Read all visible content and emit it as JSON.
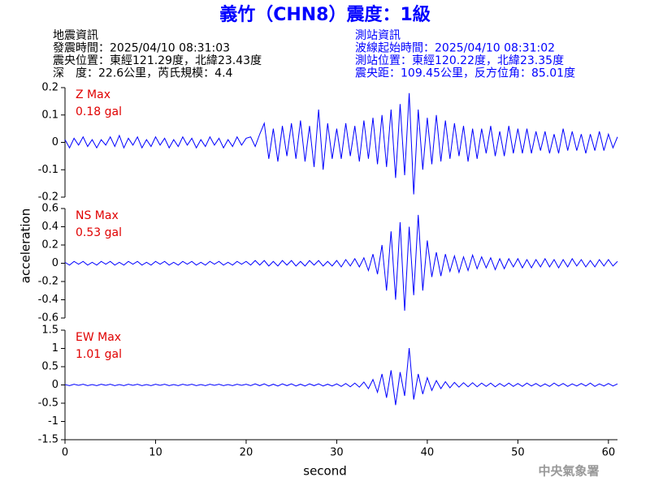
{
  "header": {
    "title": "義竹（CHN8）震度：1級",
    "left": [
      "地震資訊",
      "發震時間：2025/04/10 08:31:03",
      "震央位置：東經121.29度，北緯23.43度",
      "深　度：22.6公里，芮氏規模：4.4"
    ],
    "right": [
      "測站資訊",
      "波線起始時間：2025/04/10 08:31:02",
      "測站位置：東經120.22度，北緯23.35度",
      "震央距：109.45公里，反方位角：85.01度"
    ]
  },
  "ylabel": "acceleration",
  "footer": "中央氣象署",
  "chart_data": [
    {
      "type": "line",
      "title": "Z Max",
      "subtitle": "0.18 gal",
      "color": "#0000ff",
      "xlim": [
        0,
        61
      ],
      "ylim": [
        -0.2,
        0.2
      ],
      "yticks": [
        0.2,
        0.1,
        0,
        -0.1,
        -0.2
      ],
      "x": [
        0,
        0.5,
        1,
        1.5,
        2,
        2.5,
        3,
        3.5,
        4,
        4.5,
        5,
        5.5,
        6,
        6.5,
        7,
        7.5,
        8,
        8.5,
        9,
        9.5,
        10,
        10.5,
        11,
        11.5,
        12,
        12.5,
        13,
        13.5,
        14,
        14.5,
        15,
        15.5,
        16,
        16.5,
        17,
        17.5,
        18,
        18.5,
        19,
        19.5,
        20,
        20.5,
        21,
        21.5,
        22,
        22.5,
        23,
        23.5,
        24,
        24.5,
        25,
        25.5,
        26,
        26.5,
        27,
        27.5,
        28,
        28.5,
        29,
        29.5,
        30,
        30.5,
        31,
        31.5,
        32,
        32.5,
        33,
        33.5,
        34,
        34.5,
        35,
        35.5,
        36,
        36.5,
        37,
        37.5,
        38,
        38.5,
        39,
        39.5,
        40,
        40.5,
        41,
        41.5,
        42,
        42.5,
        43,
        43.5,
        44,
        44.5,
        45,
        45.5,
        46,
        46.5,
        47,
        47.5,
        48,
        48.5,
        49,
        49.5,
        50,
        50.5,
        51,
        51.5,
        52,
        52.5,
        53,
        53.5,
        54,
        54.5,
        55,
        55.5,
        56,
        56.5,
        57,
        57.5,
        58,
        58.5,
        59,
        59.5,
        60,
        60.5,
        61
      ],
      "values": [
        0.01,
        -0.02,
        0.015,
        -0.01,
        0.02,
        -0.015,
        0.01,
        -0.02,
        0.01,
        -0.01,
        0.02,
        -0.015,
        0.025,
        -0.02,
        0.015,
        -0.01,
        0.02,
        -0.02,
        0.01,
        -0.015,
        0.02,
        -0.01,
        0.015,
        -0.02,
        0.01,
        -0.015,
        0.02,
        -0.01,
        0.015,
        -0.02,
        0.01,
        -0.015,
        0.02,
        -0.01,
        0.015,
        -0.02,
        0.01,
        -0.015,
        0.02,
        -0.01,
        0.015,
        0.02,
        -0.015,
        0.03,
        0.07,
        -0.06,
        0.05,
        -0.07,
        0.06,
        -0.05,
        0.07,
        -0.06,
        0.08,
        -0.07,
        0.06,
        -0.09,
        0.12,
        -0.1,
        0.07,
        -0.06,
        0.05,
        -0.06,
        0.07,
        -0.05,
        0.06,
        -0.07,
        0.08,
        -0.06,
        0.09,
        -0.08,
        0.1,
        -0.09,
        0.12,
        -0.13,
        0.14,
        -0.12,
        0.18,
        -0.19,
        0.12,
        -0.1,
        0.09,
        -0.08,
        0.1,
        -0.07,
        0.08,
        -0.06,
        0.07,
        -0.05,
        0.06,
        -0.07,
        0.05,
        -0.06,
        0.05,
        -0.04,
        0.06,
        -0.05,
        0.04,
        -0.05,
        0.06,
        -0.04,
        0.05,
        -0.04,
        0.05,
        -0.04,
        0.04,
        -0.03,
        0.04,
        -0.04,
        0.03,
        -0.04,
        0.05,
        -0.03,
        0.04,
        -0.03,
        0.03,
        -0.04,
        0.03,
        -0.03,
        0.04,
        -0.03,
        0.03,
        -0.02,
        0.02
      ]
    },
    {
      "type": "line",
      "title": "NS Max",
      "subtitle": "0.53 gal",
      "color": "#0000ff",
      "xlim": [
        0,
        61
      ],
      "ylim": [
        -0.6,
        0.6
      ],
      "yticks": [
        0.6,
        0.4,
        0.2,
        0,
        -0.2,
        -0.4,
        -0.6
      ],
      "x": [
        0,
        0.5,
        1,
        1.5,
        2,
        2.5,
        3,
        3.5,
        4,
        4.5,
        5,
        5.5,
        6,
        6.5,
        7,
        7.5,
        8,
        8.5,
        9,
        9.5,
        10,
        10.5,
        11,
        11.5,
        12,
        12.5,
        13,
        13.5,
        14,
        14.5,
        15,
        15.5,
        16,
        16.5,
        17,
        17.5,
        18,
        18.5,
        19,
        19.5,
        20,
        20.5,
        21,
        21.5,
        22,
        22.5,
        23,
        23.5,
        24,
        24.5,
        25,
        25.5,
        26,
        26.5,
        27,
        27.5,
        28,
        28.5,
        29,
        29.5,
        30,
        30.5,
        31,
        31.5,
        32,
        32.5,
        33,
        33.5,
        34,
        34.5,
        35,
        35.5,
        36,
        36.5,
        37,
        37.5,
        38,
        38.5,
        39,
        39.5,
        40,
        40.5,
        41,
        41.5,
        42,
        42.5,
        43,
        43.5,
        44,
        44.5,
        45,
        45.5,
        46,
        46.5,
        47,
        47.5,
        48,
        48.5,
        49,
        49.5,
        50,
        50.5,
        51,
        51.5,
        52,
        52.5,
        53,
        53.5,
        54,
        54.5,
        55,
        55.5,
        56,
        56.5,
        57,
        57.5,
        58,
        58.5,
        59,
        59.5,
        60,
        60.5,
        61
      ],
      "values": [
        0.01,
        -0.02,
        0.02,
        -0.01,
        0.02,
        -0.02,
        0.01,
        -0.02,
        0.02,
        -0.01,
        0.02,
        -0.02,
        0.01,
        -0.02,
        0.02,
        -0.01,
        0.02,
        -0.02,
        0.01,
        -0.02,
        0.02,
        -0.01,
        0.02,
        -0.02,
        0.01,
        -0.02,
        0.02,
        -0.01,
        0.02,
        -0.02,
        0.01,
        -0.02,
        0.02,
        -0.01,
        0.02,
        -0.02,
        0.01,
        -0.02,
        0.02,
        -0.01,
        0.02,
        -0.02,
        0.03,
        -0.02,
        0.03,
        -0.03,
        0.02,
        -0.03,
        0.03,
        -0.02,
        0.03,
        -0.03,
        0.02,
        -0.03,
        0.03,
        -0.02,
        0.03,
        -0.03,
        0.02,
        -0.03,
        0.03,
        -0.04,
        0.04,
        -0.03,
        0.05,
        -0.04,
        0.06,
        -0.08,
        0.1,
        -0.12,
        0.2,
        -0.3,
        0.35,
        -0.4,
        0.45,
        -0.52,
        0.4,
        -0.35,
        0.53,
        -0.3,
        0.25,
        -0.15,
        0.12,
        -0.14,
        0.1,
        -0.09,
        0.08,
        -0.1,
        0.07,
        -0.08,
        0.09,
        -0.06,
        0.07,
        -0.05,
        0.06,
        -0.07,
        0.05,
        -0.06,
        0.05,
        -0.04,
        0.05,
        -0.05,
        0.04,
        -0.05,
        0.04,
        -0.04,
        0.05,
        -0.04,
        0.04,
        -0.05,
        0.04,
        -0.04,
        0.05,
        -0.03,
        0.04,
        -0.04,
        0.03,
        -0.04,
        0.04,
        -0.03,
        0.04,
        -0.03,
        0.02
      ]
    },
    {
      "type": "line",
      "title": "EW Max",
      "subtitle": "1.01 gal",
      "color": "#0000ff",
      "xlabel": "second",
      "xlim": [
        0,
        61
      ],
      "xticks": [
        0,
        10,
        20,
        30,
        40,
        50,
        60
      ],
      "ylim": [
        -1.5,
        1.5
      ],
      "yticks": [
        1.5,
        1,
        0.5,
        0,
        -0.5,
        -1,
        -1.5
      ],
      "x": [
        0,
        0.5,
        1,
        1.5,
        2,
        2.5,
        3,
        3.5,
        4,
        4.5,
        5,
        5.5,
        6,
        6.5,
        7,
        7.5,
        8,
        8.5,
        9,
        9.5,
        10,
        10.5,
        11,
        11.5,
        12,
        12.5,
        13,
        13.5,
        14,
        14.5,
        15,
        15.5,
        16,
        16.5,
        17,
        17.5,
        18,
        18.5,
        19,
        19.5,
        20,
        20.5,
        21,
        21.5,
        22,
        22.5,
        23,
        23.5,
        24,
        24.5,
        25,
        25.5,
        26,
        26.5,
        27,
        27.5,
        28,
        28.5,
        29,
        29.5,
        30,
        30.5,
        31,
        31.5,
        32,
        32.5,
        33,
        33.5,
        34,
        34.5,
        35,
        35.5,
        36,
        36.5,
        37,
        37.5,
        38,
        38.5,
        39,
        39.5,
        40,
        40.5,
        41,
        41.5,
        42,
        42.5,
        43,
        43.5,
        44,
        44.5,
        45,
        45.5,
        46,
        46.5,
        47,
        47.5,
        48,
        48.5,
        49,
        49.5,
        50,
        50.5,
        51,
        51.5,
        52,
        52.5,
        53,
        53.5,
        54,
        54.5,
        55,
        55.5,
        56,
        56.5,
        57,
        57.5,
        58,
        58.5,
        59,
        59.5,
        60,
        60.5,
        61
      ],
      "values": [
        0.01,
        -0.02,
        0.02,
        -0.01,
        0.02,
        -0.02,
        0.01,
        -0.02,
        0.02,
        -0.01,
        0.02,
        -0.02,
        0.01,
        -0.02,
        0.02,
        -0.01,
        0.02,
        -0.02,
        0.01,
        -0.02,
        0.02,
        -0.01,
        0.02,
        -0.02,
        0.01,
        -0.02,
        0.02,
        -0.01,
        0.02,
        -0.02,
        0.01,
        -0.02,
        0.02,
        -0.01,
        0.02,
        -0.02,
        0.01,
        -0.02,
        0.02,
        -0.01,
        0.02,
        -0.02,
        0.03,
        -0.02,
        0.03,
        -0.03,
        0.02,
        -0.03,
        0.03,
        -0.02,
        0.03,
        -0.03,
        0.02,
        -0.03,
        0.03,
        -0.02,
        0.03,
        -0.03,
        0.02,
        -0.03,
        0.03,
        -0.04,
        0.04,
        -0.05,
        0.05,
        -0.06,
        0.08,
        -0.1,
        0.15,
        -0.2,
        0.3,
        -0.35,
        0.4,
        -0.55,
        0.35,
        -0.3,
        1.01,
        -0.4,
        0.3,
        -0.25,
        0.2,
        -0.15,
        0.12,
        -0.1,
        0.09,
        -0.08,
        0.07,
        -0.06,
        0.06,
        -0.05,
        0.06,
        -0.05,
        0.05,
        -0.04,
        0.05,
        -0.05,
        0.04,
        -0.04,
        0.05,
        -0.04,
        0.04,
        -0.04,
        0.05,
        -0.03,
        0.04,
        -0.04,
        0.03,
        -0.04,
        0.05,
        -0.03,
        0.04,
        -0.04,
        0.03,
        -0.03,
        0.04,
        -0.03,
        0.05,
        -0.04,
        0.03,
        -0.03,
        0.04,
        -0.03,
        0.03
      ]
    }
  ]
}
